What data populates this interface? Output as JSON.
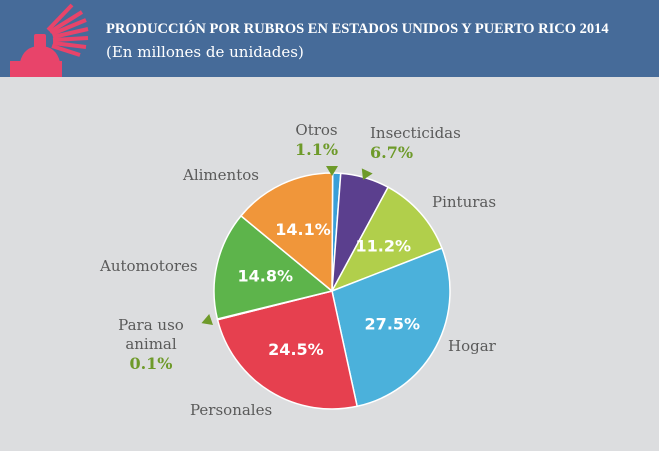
{
  "header": {
    "title": "PRODUCCIÓN POR RUBROS EN ESTADOS UNIDOS Y PUERTO RICO 2014",
    "subtitle": "(En millones de unidades)",
    "icon": "spray-can-icon"
  },
  "colors": {
    "header": "#466b99",
    "background": "#dcdddf",
    "label": "#5a5a5a",
    "outside_pct": "#6e9a2a"
  },
  "chart_data": {
    "type": "pie",
    "title": "PRODUCCIÓN POR RUBROS EN ESTADOS UNIDOS Y PUERTO RICO 2014",
    "subtitle": "(En millones de unidades)",
    "slices": [
      {
        "name": "Otros",
        "value": 1.1,
        "label": "1.1%",
        "color": "#3a9fd8"
      },
      {
        "name": "Insecticidas",
        "value": 6.7,
        "label": "6.7%",
        "color": "#5b3f8e"
      },
      {
        "name": "Pinturas",
        "value": 11.2,
        "label": "11.2%",
        "color": "#b1cf4b"
      },
      {
        "name": "Hogar",
        "value": 27.5,
        "label": "27.5%",
        "color": "#4bb1db"
      },
      {
        "name": "Personales",
        "value": 24.5,
        "label": "24.5%",
        "color": "#e6404f"
      },
      {
        "name": "Para uso animal",
        "value": 0.1,
        "label": "0.1%",
        "color": "#e6404f"
      },
      {
        "name": "Automotores",
        "value": 14.8,
        "label": "14.8%",
        "color": "#5db44b"
      },
      {
        "name": "Alimentos",
        "value": 14.1,
        "label": "14.1%",
        "color": "#f0963a"
      }
    ]
  }
}
